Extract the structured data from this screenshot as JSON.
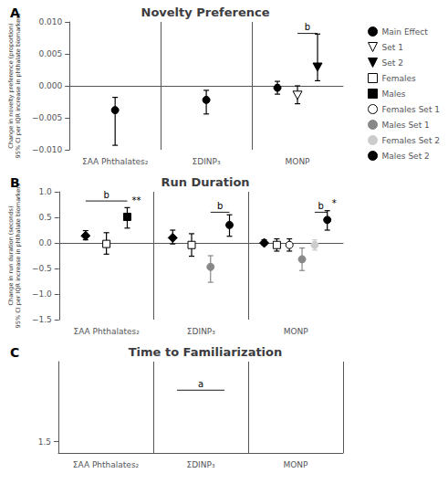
{
  "chart_data": [
    {
      "type": "scatter",
      "title": "Novelty Preference",
      "ylabel": "Change in novelty preference (proportion)\n95% CI per IQR increase in phthalate biomarkers",
      "categories": [
        "ΣAA Phthalates₂",
        "ΣDINP₃",
        "MONP"
      ],
      "ylim": [
        -0.01,
        0.01
      ],
      "yticks": [
        {
          "value": -0.01,
          "label": "−0.010"
        },
        {
          "value": -0.005,
          "label": "−0.005"
        },
        {
          "value": 0.0,
          "label": "0.000"
        },
        0.005,
        {
          "value": 0.01,
          "label": "0.010"
        }
      ],
      "grid": false,
      "legend": "right",
      "series": [
        {
          "name": "Main Effect",
          "marker": "circle",
          "color": "#000000",
          "values": [
            -0.0038,
            -0.0022,
            -0.0003
          ],
          "err_low": [
            0.0055,
            0.0022,
            0.001
          ],
          "err_high": [
            0.002,
            0.0015,
            0.001
          ]
        },
        {
          "name": "Set 1",
          "marker": "triangle_down",
          "color": "#ffffff",
          "values": [
            null,
            null,
            -0.0014
          ],
          "err_low": [
            null,
            null,
            0.0014
          ],
          "err_high": [
            null,
            null,
            0.0014
          ]
        },
        {
          "name": "Set 2",
          "marker": "triangle_down",
          "color": "#000000",
          "values": [
            null,
            null,
            0.003
          ],
          "err_low": [
            null,
            null,
            0.0022
          ],
          "err_high": [
            null,
            null,
            0.0051
          ]
        }
      ],
      "annotations": [
        {
          "text": "A"
        },
        {
          "text": "b",
          "category": "MONP",
          "y": 0.0082,
          "series": [
            "Set 1",
            "Set 2"
          ]
        }
      ]
    },
    {
      "type": "scatter",
      "title": "Run Duration",
      "ylabel": "Change in run duration (seconds)\n95% CI per IQR increase in phthalate biomarkers",
      "categories": [
        "ΣAA Phthalates₂",
        "ΣDINP₃",
        "MONP"
      ],
      "ylim": [
        -1.5,
        1.0
      ],
      "yticks": [
        {
          "value": -1.5,
          "label": "−1.5"
        },
        {
          "value": -1.0,
          "label": "−1.0"
        },
        {
          "value": -0.5,
          "label": "−0.5"
        },
        {
          "value": 0.0,
          "label": "0.0"
        },
        0.5,
        {
          "value": 1.0,
          "label": "1.0"
        }
      ],
      "grid": false,
      "series": [
        {
          "name": "Main Effect",
          "marker": "diamond",
          "color": "#000000",
          "values": [
            0.14,
            0.1,
            0.0
          ],
          "err_low": [
            0.08,
            0.12,
            0.04
          ],
          "err_high": [
            0.1,
            0.15,
            0.06
          ]
        },
        {
          "name": "Females",
          "marker": "square",
          "color": "#ffffff",
          "values": [
            -0.02,
            -0.04,
            -0.04
          ],
          "err_low": [
            0.2,
            0.22,
            0.12
          ],
          "err_high": [
            0.22,
            0.22,
            0.12
          ]
        },
        {
          "name": "Males",
          "marker": "square",
          "color": "#000000",
          "values": [
            0.51,
            null,
            null
          ],
          "err_low": [
            0.22,
            null,
            null
          ],
          "err_high": [
            0.18,
            null,
            null
          ]
        },
        {
          "name": "Females Set 1",
          "marker": "circle",
          "color": "#ffffff",
          "values": [
            null,
            null,
            -0.04
          ],
          "err_low": [
            null,
            null,
            0.12
          ],
          "err_high": [
            null,
            null,
            0.12
          ]
        },
        {
          "name": "Males Set 1",
          "marker": "circle",
          "color": "#888888",
          "values": [
            null,
            -0.47,
            -0.32
          ],
          "err_low": [
            null,
            0.3,
            0.22
          ],
          "err_high": [
            null,
            0.22,
            0.22
          ]
        },
        {
          "name": "Females Set 2",
          "marker": "circle",
          "color": "#cccccc",
          "values": [
            null,
            null,
            -0.04
          ],
          "err_low": [
            null,
            null,
            0.1
          ],
          "err_high": [
            null,
            null,
            0.1
          ]
        },
        {
          "name": "Males Set 2",
          "marker": "circle",
          "color": "#000000",
          "values": [
            null,
            0.35,
            0.45
          ],
          "err_low": [
            null,
            0.22,
            0.2
          ],
          "err_high": [
            null,
            0.2,
            0.18
          ]
        }
      ],
      "annotations": [
        {
          "text": "B"
        },
        {
          "text": "b",
          "category": "ΣAA Phthalates₂",
          "y": 0.82,
          "series": [
            "Main Effect",
            "Males"
          ]
        },
        {
          "text": "b",
          "category": "ΣDINP₃",
          "y": 0.6,
          "series": [
            "Males Set 1",
            "Males Set 2"
          ]
        },
        {
          "text": "b",
          "category": "MONP",
          "y": 0.6,
          "series": [
            "Females Set 2",
            "Males Set 2"
          ]
        },
        {
          "text": "**",
          "category": "ΣAA Phthalates₂",
          "y": 0.75,
          "series": [
            "Males"
          ]
        },
        {
          "text": "*",
          "category": "MONP",
          "y": 0.68,
          "series": [
            "Males Set 2"
          ]
        }
      ]
    },
    {
      "type": "scatter",
      "title": "Time to Familiarization",
      "categories": [
        "ΣAA Phthalates₂",
        "ΣDINP₃",
        "MONP"
      ],
      "ylim": [
        1.4,
        2.2
      ],
      "yticks": [
        1.5
      ],
      "grid": false,
      "series": [],
      "annotations": [
        {
          "text": "C"
        },
        {
          "text": "a",
          "category": "ΣDINP₃",
          "y": 1.95
        }
      ]
    }
  ]
}
